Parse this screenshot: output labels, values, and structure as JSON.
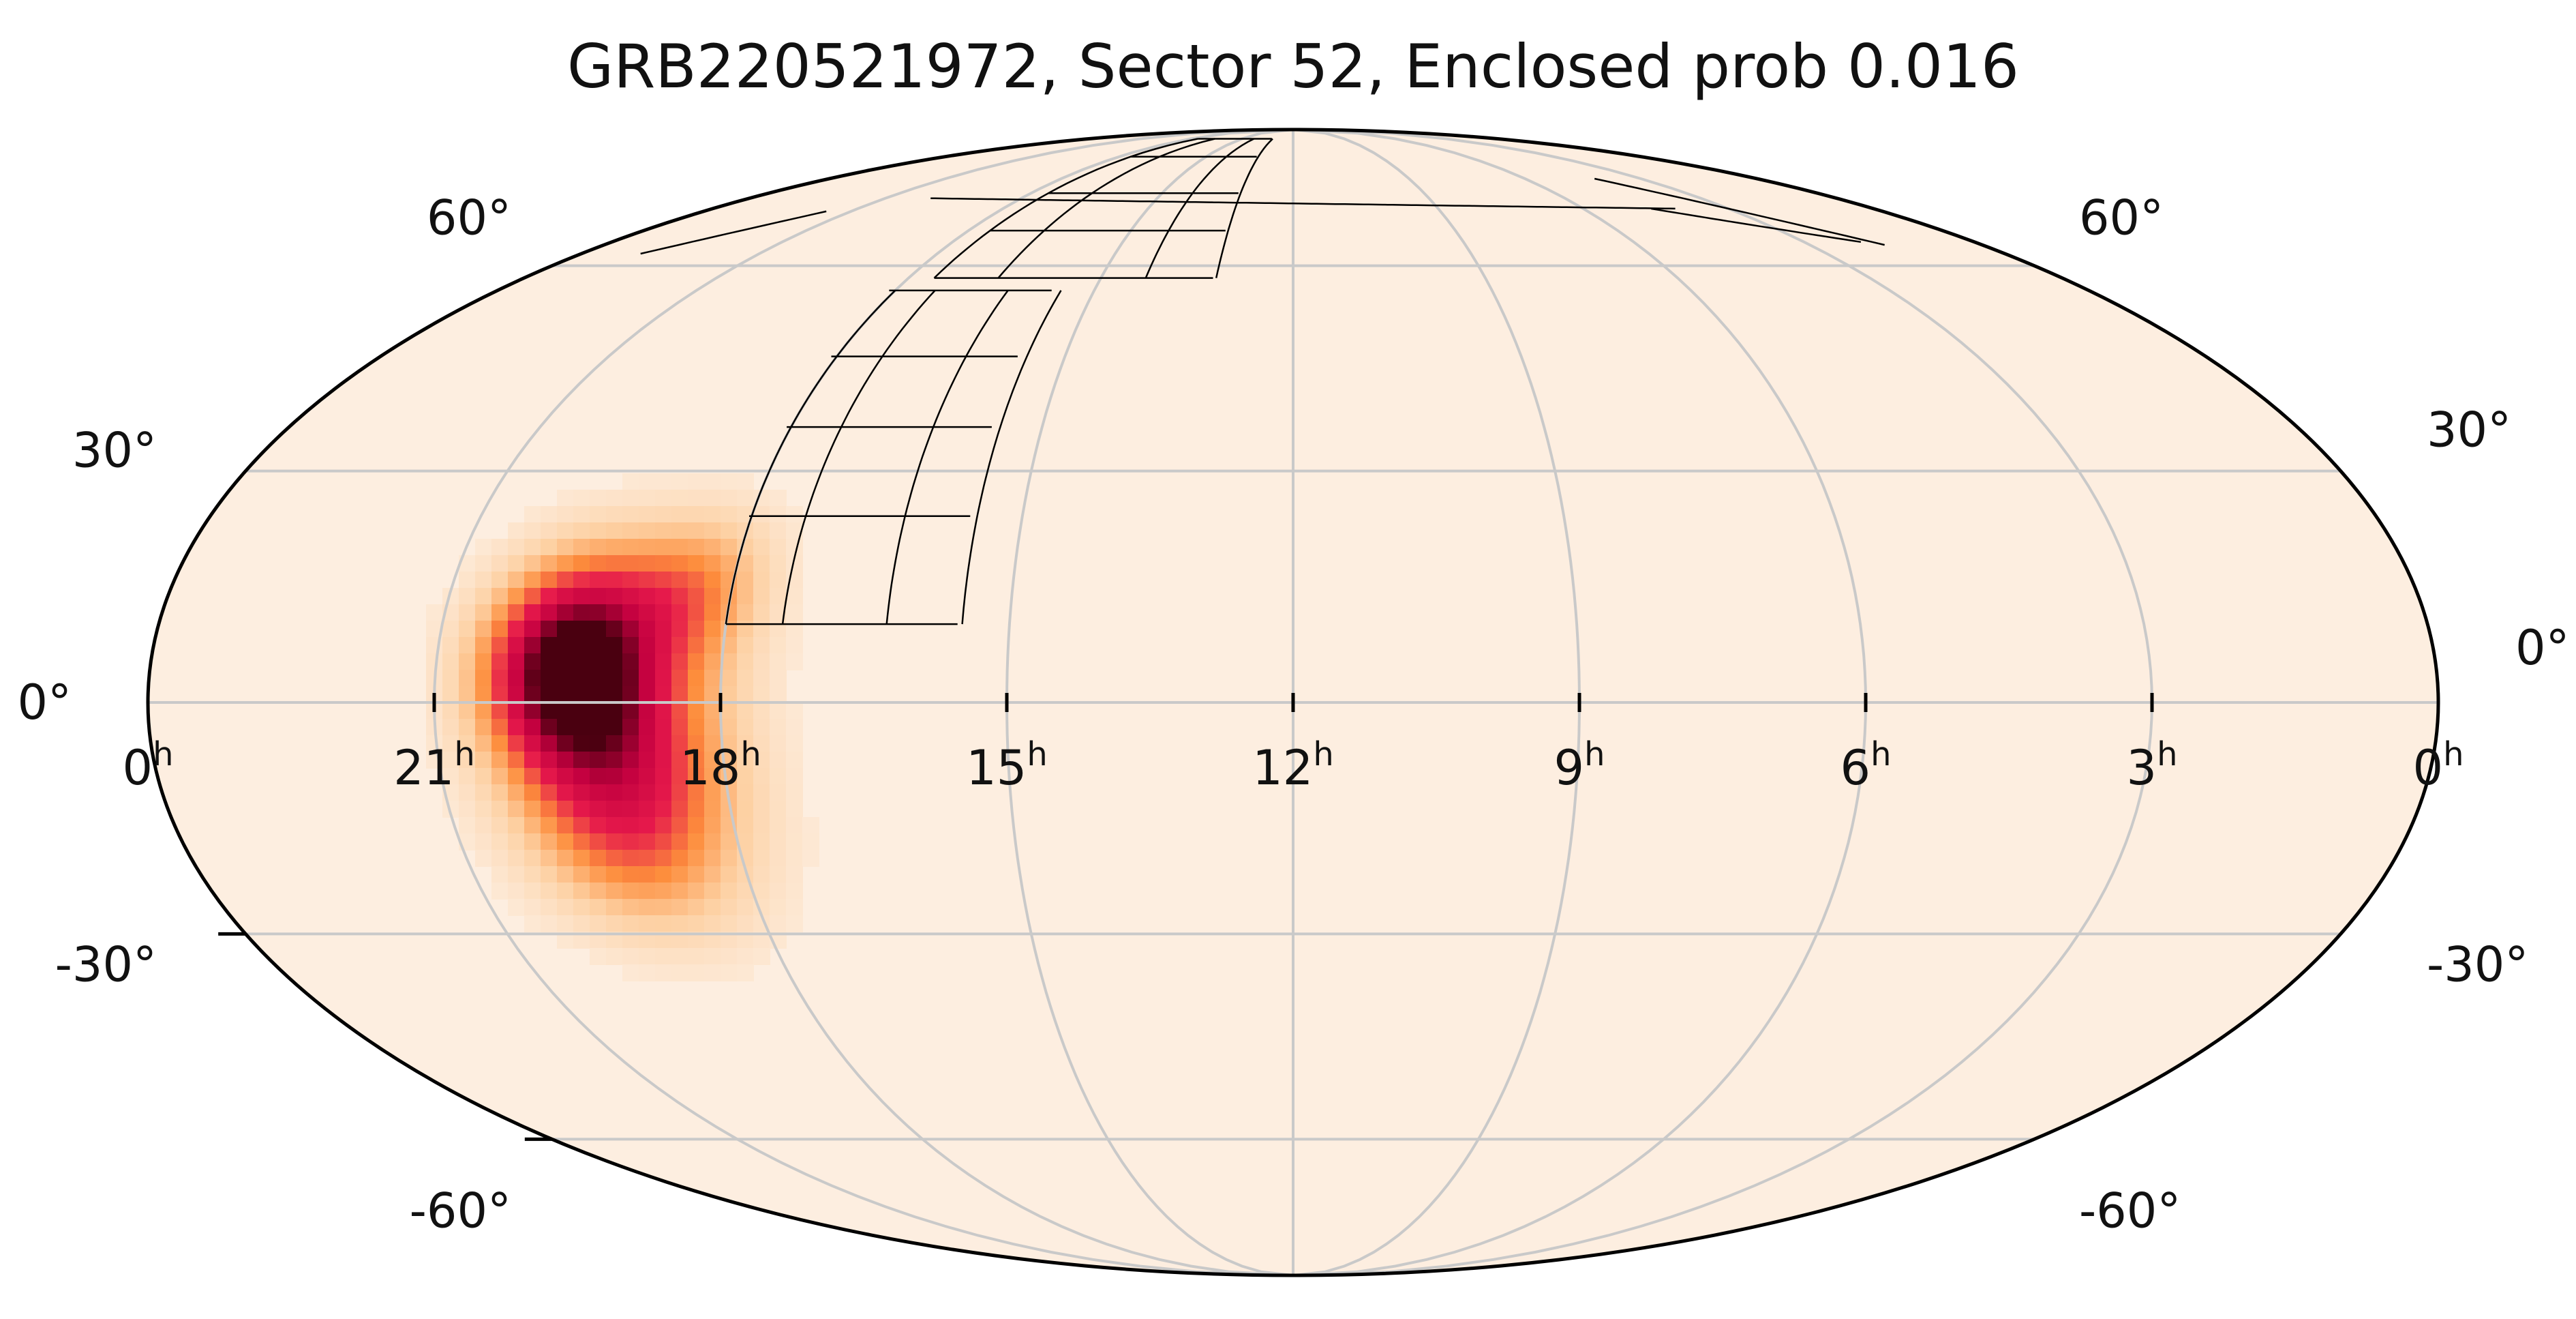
{
  "chart_data": {
    "type": "heatmap",
    "projection": "mollweide",
    "title": "GRB220521972, Sector 52, Enclosed prob 0.016",
    "ra_tick_labels": [
      "0",
      "21",
      "18",
      "15",
      "12",
      "9",
      "6",
      "3",
      "0"
    ],
    "ra_tick_unit": "h",
    "ra_tick_hours": [
      24,
      21,
      18,
      15,
      12,
      9,
      6,
      3,
      0
    ],
    "dec_ticks": [
      -60,
      -30,
      0,
      30,
      60
    ],
    "dec_tick_labels_left": [
      "60°",
      "30°",
      "0°",
      "-30°",
      "-60°"
    ],
    "dec_tick_labels_right": [
      "60°",
      "30°",
      "0°",
      "-30°",
      "-60°"
    ],
    "grid": true,
    "colormap": [
      "#fdeee0",
      "#fdd0a2",
      "#fd8d3c",
      "#e6194b",
      "#c2003f",
      "#4a0010"
    ],
    "probability_peak": {
      "ra_hours": 19.6,
      "dec_deg": 5
    },
    "probability_components": [
      {
        "ra_hours": 19.6,
        "dec_deg": 5,
        "sigma_ra_deg": 9,
        "sigma_dec_deg": 9,
        "weight": 1.0
      },
      {
        "ra_hours": 19.0,
        "dec_deg": -8,
        "sigma_ra_deg": 12,
        "sigma_dec_deg": 11,
        "weight": 0.55
      },
      {
        "ra_hours": 18.4,
        "dec_deg": 14,
        "sigma_ra_deg": 8,
        "sigma_dec_deg": 7,
        "weight": 0.35
      },
      {
        "ra_hours": 19.3,
        "dec_deg": -20,
        "sigma_ra_deg": 10,
        "sigma_dec_deg": 8,
        "weight": 0.18
      }
    ],
    "footprint": {
      "description": "TESS camera CCD outlines",
      "grid_ra_hours": [
        18.0,
        17.4,
        16.3,
        15.5
      ],
      "grid_dec_deg": [
        10,
        24,
        36,
        46,
        56
      ],
      "upper_arcs_ra_hours": [
        17.6,
        16.6,
        14.3,
        13.2
      ],
      "upper_arcs_dec_deg": [
        58,
        66,
        73,
        81,
        86
      ]
    }
  }
}
